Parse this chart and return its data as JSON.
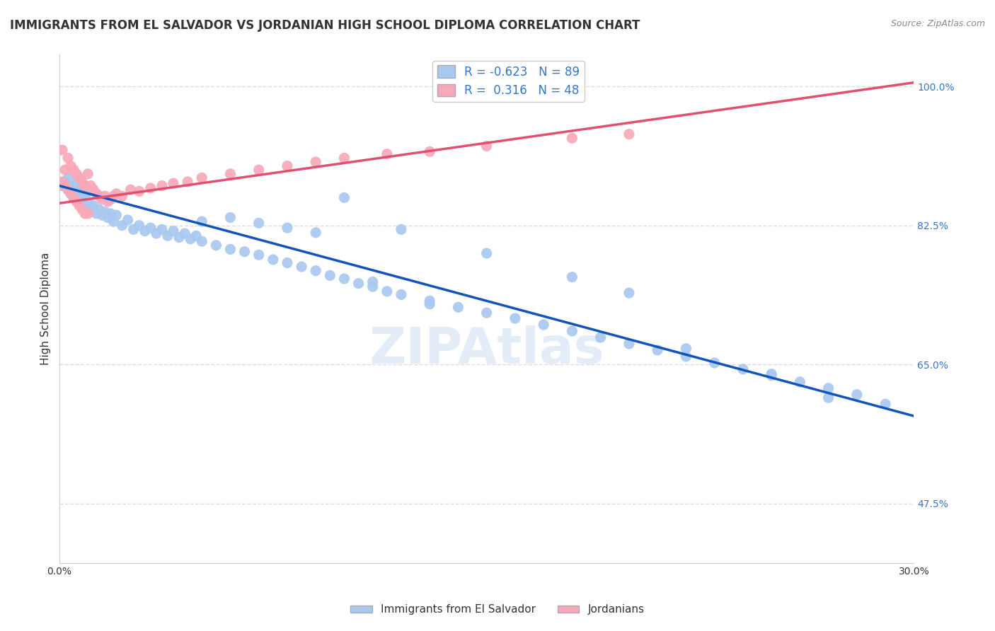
{
  "title": "IMMIGRANTS FROM EL SALVADOR VS JORDANIAN HIGH SCHOOL DIPLOMA CORRELATION CHART",
  "source": "Source: ZipAtlas.com",
  "ylabel": "High School Diploma",
  "legend_label1": "Immigrants from El Salvador",
  "legend_label2": "Jordanians",
  "R1": -0.623,
  "N1": 89,
  "R2": 0.316,
  "N2": 48,
  "blue_color": "#a8c8f0",
  "blue_line_color": "#1155bb",
  "pink_color": "#f8a8b8",
  "pink_line_color": "#e05070",
  "watermark": "ZIPAtlas",
  "blue_scatter_x": [
    0.001,
    0.002,
    0.003,
    0.003,
    0.004,
    0.004,
    0.005,
    0.005,
    0.006,
    0.006,
    0.007,
    0.007,
    0.008,
    0.008,
    0.009,
    0.009,
    0.01,
    0.01,
    0.011,
    0.012,
    0.013,
    0.014,
    0.015,
    0.016,
    0.017,
    0.018,
    0.019,
    0.02,
    0.022,
    0.024,
    0.026,
    0.028,
    0.03,
    0.032,
    0.034,
    0.036,
    0.038,
    0.04,
    0.042,
    0.044,
    0.046,
    0.048,
    0.05,
    0.055,
    0.06,
    0.065,
    0.07,
    0.075,
    0.08,
    0.085,
    0.09,
    0.095,
    0.1,
    0.105,
    0.11,
    0.115,
    0.12,
    0.13,
    0.14,
    0.15,
    0.16,
    0.17,
    0.18,
    0.19,
    0.2,
    0.21,
    0.22,
    0.23,
    0.24,
    0.25,
    0.26,
    0.27,
    0.28,
    0.29,
    0.1,
    0.12,
    0.15,
    0.18,
    0.2,
    0.05,
    0.06,
    0.07,
    0.08,
    0.09,
    0.11,
    0.13,
    0.22,
    0.25,
    0.27
  ],
  "blue_scatter_y": [
    0.875,
    0.88,
    0.87,
    0.885,
    0.865,
    0.875,
    0.86,
    0.87,
    0.88,
    0.865,
    0.855,
    0.87,
    0.86,
    0.875,
    0.85,
    0.862,
    0.855,
    0.868,
    0.845,
    0.85,
    0.84,
    0.845,
    0.838,
    0.842,
    0.835,
    0.84,
    0.83,
    0.838,
    0.825,
    0.832,
    0.82,
    0.825,
    0.818,
    0.822,
    0.815,
    0.82,
    0.812,
    0.818,
    0.81,
    0.815,
    0.808,
    0.812,
    0.805,
    0.8,
    0.795,
    0.792,
    0.788,
    0.782,
    0.778,
    0.773,
    0.768,
    0.762,
    0.758,
    0.752,
    0.748,
    0.742,
    0.738,
    0.73,
    0.722,
    0.715,
    0.708,
    0.7,
    0.692,
    0.684,
    0.676,
    0.668,
    0.66,
    0.652,
    0.644,
    0.636,
    0.628,
    0.62,
    0.612,
    0.6,
    0.86,
    0.82,
    0.79,
    0.76,
    0.74,
    0.83,
    0.835,
    0.828,
    0.822,
    0.816,
    0.754,
    0.726,
    0.67,
    0.638,
    0.608
  ],
  "pink_scatter_x": [
    0.001,
    0.001,
    0.002,
    0.002,
    0.003,
    0.003,
    0.004,
    0.004,
    0.005,
    0.005,
    0.006,
    0.006,
    0.007,
    0.007,
    0.008,
    0.008,
    0.009,
    0.009,
    0.01,
    0.01,
    0.011,
    0.012,
    0.013,
    0.014,
    0.015,
    0.016,
    0.017,
    0.018,
    0.019,
    0.02,
    0.022,
    0.025,
    0.028,
    0.032,
    0.036,
    0.04,
    0.045,
    0.05,
    0.06,
    0.07,
    0.08,
    0.09,
    0.1,
    0.115,
    0.13,
    0.15,
    0.18,
    0.2
  ],
  "pink_scatter_y": [
    0.88,
    0.92,
    0.875,
    0.895,
    0.87,
    0.91,
    0.865,
    0.9,
    0.86,
    0.895,
    0.855,
    0.89,
    0.85,
    0.885,
    0.845,
    0.88,
    0.84,
    0.875,
    0.84,
    0.89,
    0.875,
    0.87,
    0.865,
    0.862,
    0.858,
    0.862,
    0.855,
    0.858,
    0.862,
    0.865,
    0.862,
    0.87,
    0.868,
    0.872,
    0.875,
    0.878,
    0.88,
    0.885,
    0.89,
    0.895,
    0.9,
    0.905,
    0.91,
    0.915,
    0.918,
    0.925,
    0.935,
    0.94
  ],
  "blue_trend_x": [
    0.0,
    0.3
  ],
  "blue_trend_y": [
    0.875,
    0.585
  ],
  "pink_trend_x": [
    0.0,
    0.3
  ],
  "pink_trend_y": [
    0.853,
    1.005
  ],
  "xlim": [
    0.0,
    0.3
  ],
  "ylim": [
    0.4,
    1.04
  ],
  "ytick_vals": [
    0.475,
    0.65,
    0.825,
    1.0
  ],
  "ytick_labels": [
    "47.5%",
    "65.0%",
    "82.5%",
    "100.0%"
  ],
  "xtick_vals": [
    0.0,
    0.05,
    0.1,
    0.15,
    0.2,
    0.25,
    0.3
  ],
  "xtick_labels": [
    "0.0%",
    "",
    "",
    "",
    "",
    "",
    "30.0%"
  ],
  "grid_color": "#dddddd",
  "background_color": "#ffffff",
  "marker_size": 120
}
